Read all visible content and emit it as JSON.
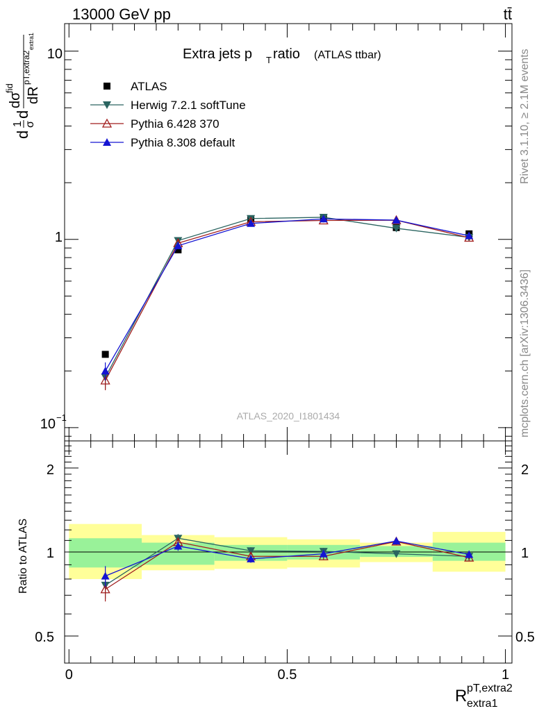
{
  "header": {
    "energy": "13000 GeV pp",
    "process": "tt̄"
  },
  "side": {
    "rivet": "Rivet 3.1.10, ≥ 2.1M events",
    "mcplots": "mcplots.cern.ch [arXiv:1306.3436]"
  },
  "analysis_id": "ATLAS_2020_I1801434",
  "chart_data": [
    {
      "type": "scatter",
      "panel": "main",
      "title": "Extra jets p",
      "title_sub": "T",
      "title_rest": " ratio",
      "title_note": "(ATLAS ttbar)",
      "ylabel": "",
      "yscale": "log",
      "ylim": [
        0.085,
        14
      ],
      "xlim": [
        -0.01,
        1.015
      ],
      "ytick_labels": [
        "10",
        "1",
        "10"
      ],
      "ytick_exp": "−1",
      "x": [
        0.0833,
        0.25,
        0.4167,
        0.5833,
        0.75,
        0.9167
      ],
      "series": [
        {
          "name": "ATLAS",
          "marker": "square-filled",
          "color": "#000000",
          "values": [
            0.245,
            0.88,
            1.285,
            1.305,
            1.155,
            1.07
          ]
        },
        {
          "name": "Herwig 7.2.1 softTune",
          "marker": "triangle-down-filled",
          "color": "#2a6460",
          "values": [
            0.185,
            0.985,
            1.29,
            1.31,
            1.145,
            1.025
          ],
          "err": [
            0.025,
            0.04,
            0.03,
            0.03,
            0.03,
            0.03
          ]
        },
        {
          "name": "Pythia 6.428 370",
          "marker": "triangle-up-open",
          "color": "#a01c1c",
          "values": [
            0.178,
            0.955,
            1.24,
            1.26,
            1.265,
            1.02
          ],
          "err": [
            0.02,
            0.04,
            0.03,
            0.03,
            0.03,
            0.03
          ]
        },
        {
          "name": "Pythia 8.308 default",
          "marker": "triangle-up-filled",
          "color": "#1414d2",
          "values": [
            0.2,
            0.925,
            1.215,
            1.285,
            1.265,
            1.045
          ],
          "err": [
            0.022,
            0.04,
            0.03,
            0.03,
            0.03,
            0.03
          ]
        }
      ]
    },
    {
      "type": "scatter",
      "panel": "ratio",
      "ylabel": "Ratio to ATLAS",
      "ylim": [
        0.4,
        2.5
      ],
      "xlim": [
        -0.01,
        1.015
      ],
      "xlabel_main": "R",
      "xlabel_sup": "pT,extra2",
      "xlabel_sub": "extra1",
      "xtick_labels": [
        "0",
        "0.5",
        "1"
      ],
      "ytick_labels": [
        "0.5",
        "1",
        "2"
      ],
      "bands": {
        "x_edges": [
          0,
          0.1667,
          0.3333,
          0.5,
          0.6667,
          0.8333,
          1.0
        ],
        "inner_lo": [
          0.88,
          0.9,
          0.93,
          0.94,
          0.96,
          0.93
        ],
        "inner_hi": [
          1.12,
          1.08,
          1.06,
          1.06,
          1.05,
          1.08
        ],
        "outer_lo": [
          0.8,
          0.86,
          0.87,
          0.88,
          0.92,
          0.85
        ],
        "outer_hi": [
          1.26,
          1.15,
          1.13,
          1.11,
          1.08,
          1.18
        ],
        "inner_color": "#99f299",
        "outer_color": "#ffff99"
      },
      "x": [
        0.0833,
        0.25,
        0.4167,
        0.5833,
        0.75,
        0.9167
      ],
      "series": [
        {
          "name": "Herwig 7.2.1 softTune",
          "color": "#2a6460",
          "marker": "triangle-down-filled",
          "values": [
            0.76,
            1.12,
            1.01,
            1.005,
            0.985,
            0.965
          ],
          "err": [
            0.08,
            0.04,
            0.03,
            0.03,
            0.03,
            0.03
          ]
        },
        {
          "name": "Pythia 6.428 370",
          "color": "#a01c1c",
          "marker": "triangle-up-open",
          "values": [
            0.735,
            1.085,
            0.965,
            0.965,
            1.09,
            0.955
          ],
          "err": [
            0.07,
            0.04,
            0.03,
            0.03,
            0.03,
            0.03
          ]
        },
        {
          "name": "Pythia 8.308 default",
          "color": "#1414d2",
          "marker": "triangle-up-filled",
          "values": [
            0.82,
            1.05,
            0.945,
            0.985,
            1.095,
            0.98
          ],
          "err": [
            0.07,
            0.04,
            0.03,
            0.03,
            0.03,
            0.03
          ]
        }
      ]
    }
  ]
}
